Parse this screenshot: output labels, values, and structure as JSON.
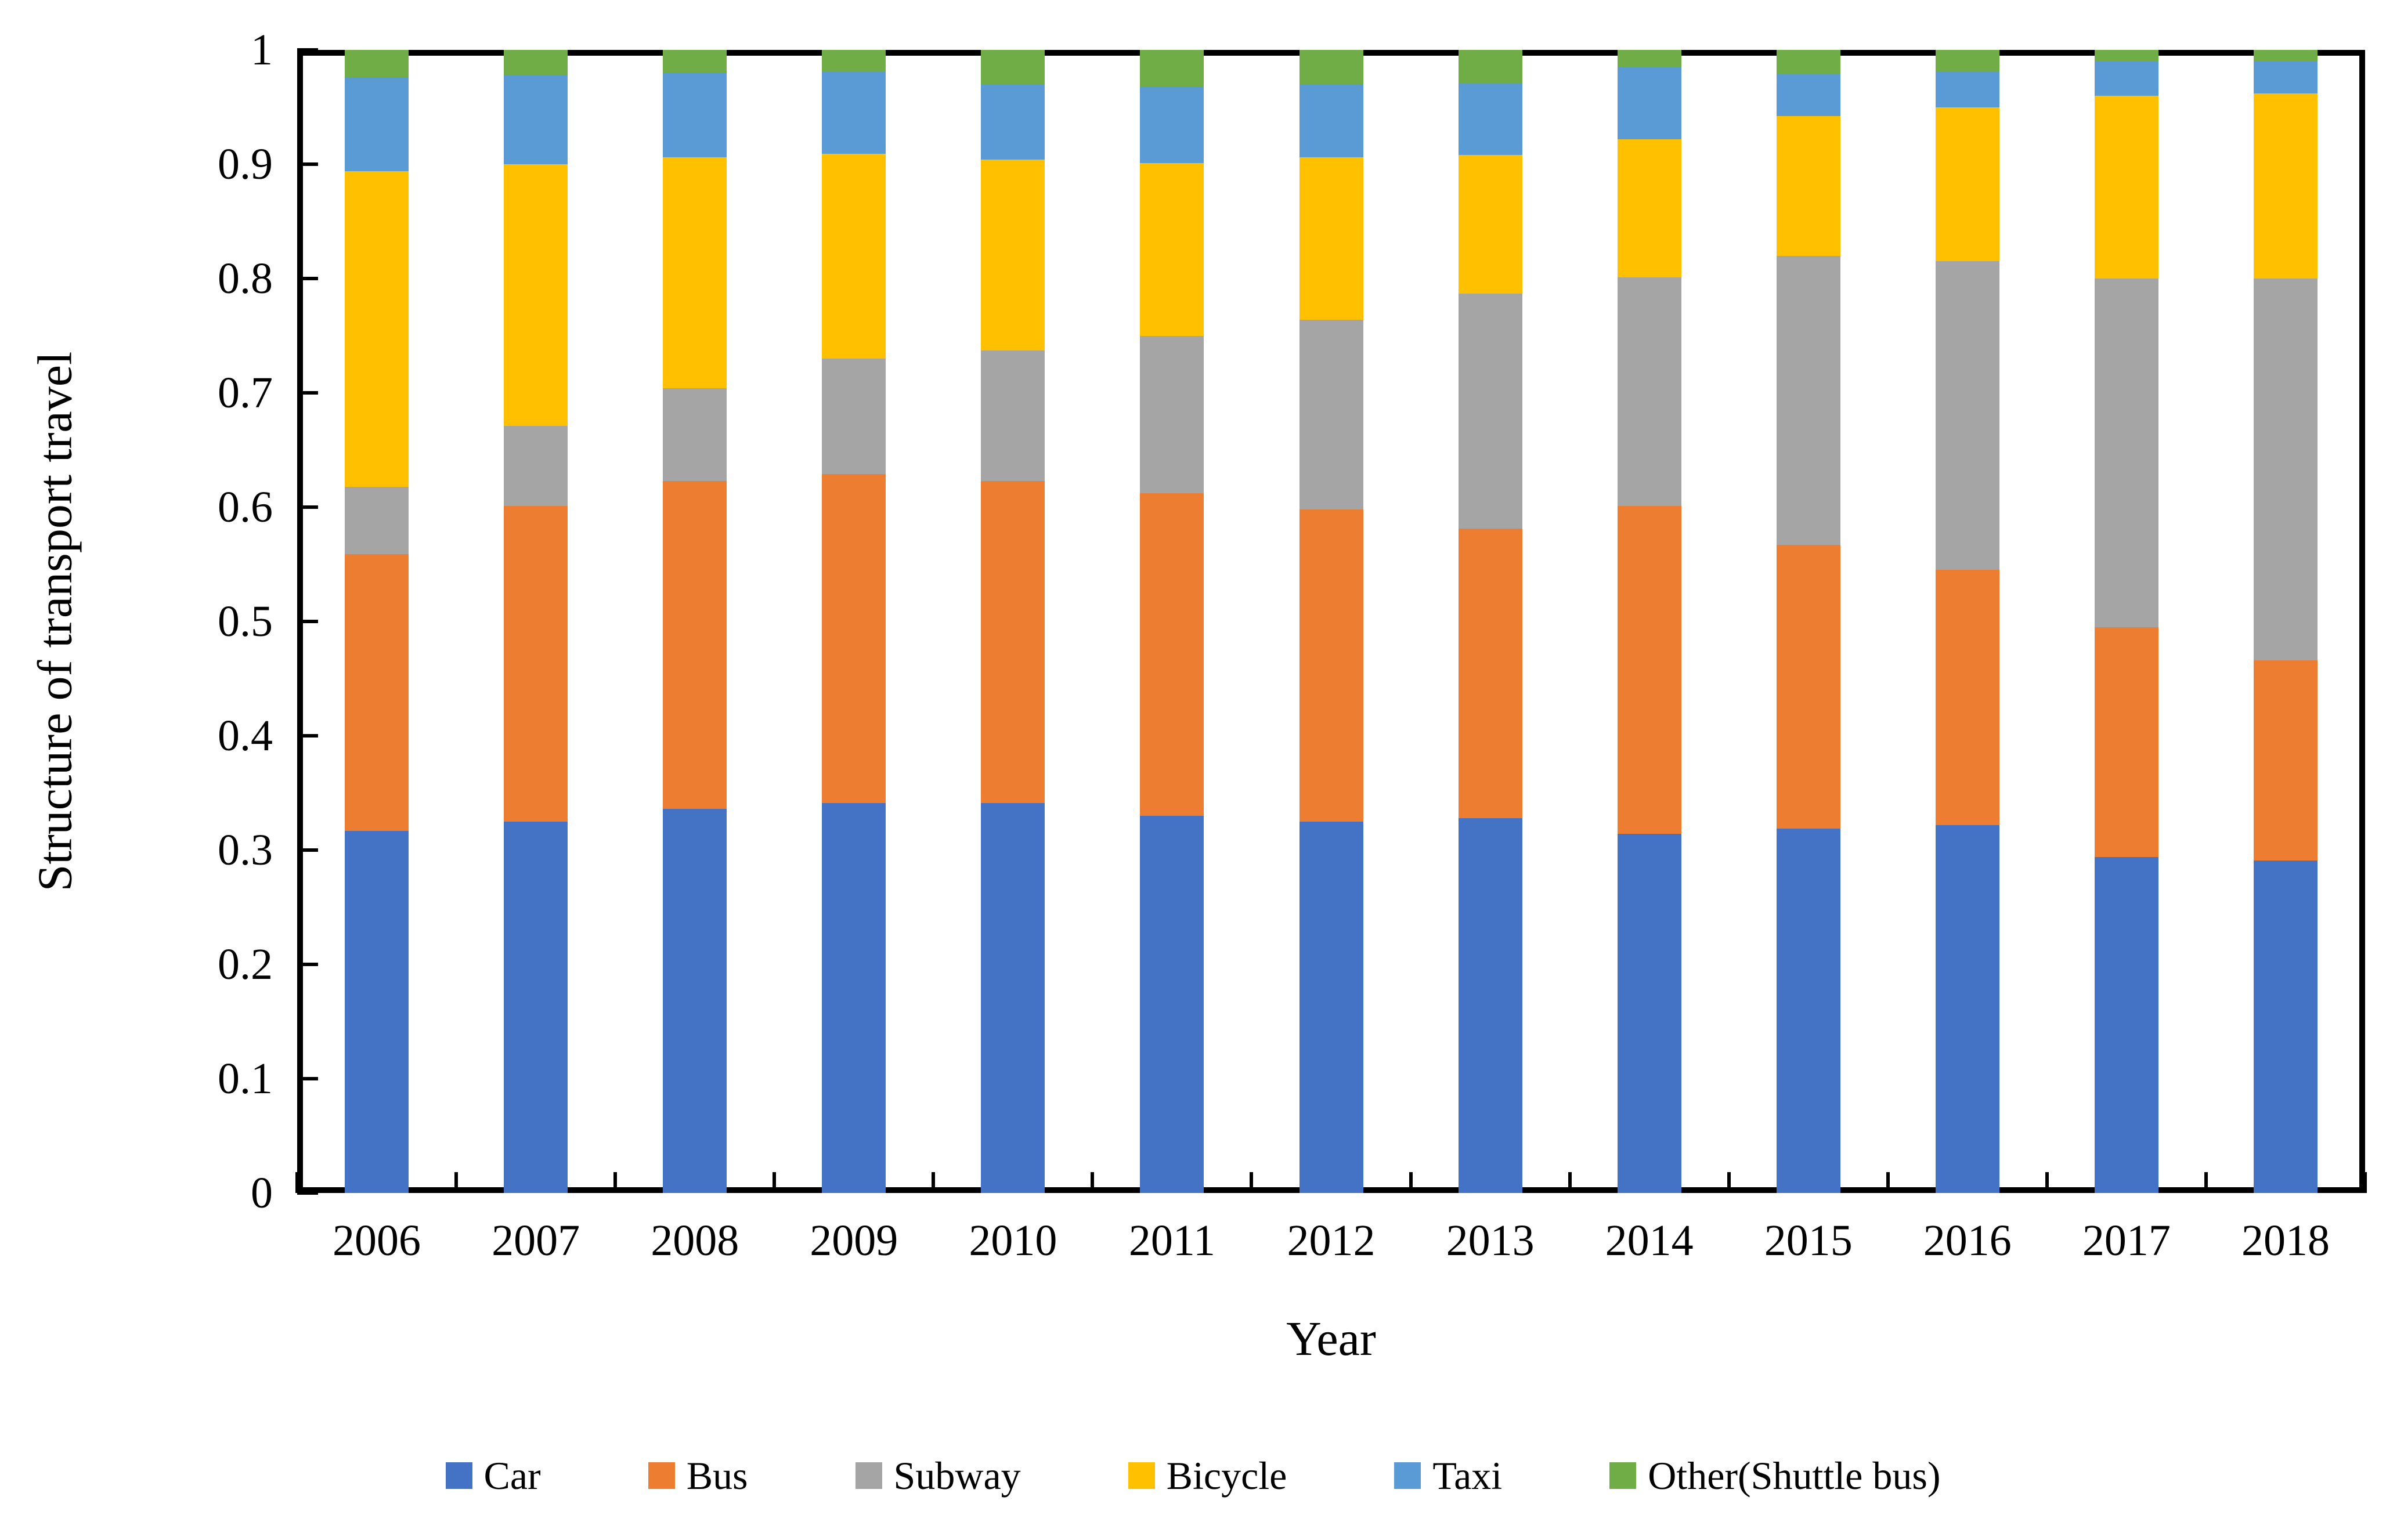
{
  "chart_data": {
    "type": "bar",
    "stacked": true,
    "title": "",
    "xlabel": "Year",
    "ylabel": "Structure of transport travel",
    "ylim": [
      0,
      1
    ],
    "grid": false,
    "legend_position": "bottom",
    "ytick_labels": [
      "0",
      "0.1",
      "0.2",
      "0.3",
      "0.4",
      "0.5",
      "0.6",
      "0.7",
      "0.8",
      "0.9",
      "1"
    ],
    "categories": [
      "2006",
      "2007",
      "2008",
      "2009",
      "2010",
      "2011",
      "2012",
      "2013",
      "2014",
      "2015",
      "2016",
      "2017",
      "2018"
    ],
    "series": [
      {
        "name": "Car",
        "color": "#4472C4",
        "values": [
          0.317,
          0.325,
          0.336,
          0.341,
          0.341,
          0.33,
          0.325,
          0.328,
          0.314,
          0.319,
          0.322,
          0.294,
          0.291
        ]
      },
      {
        "name": "Bus",
        "color": "#ED7D31",
        "values": [
          0.242,
          0.276,
          0.287,
          0.288,
          0.282,
          0.282,
          0.273,
          0.253,
          0.287,
          0.248,
          0.223,
          0.201,
          0.175
        ]
      },
      {
        "name": "Subway",
        "color": "#A5A5A5",
        "values": [
          0.059,
          0.07,
          0.081,
          0.101,
          0.114,
          0.138,
          0.166,
          0.206,
          0.2,
          0.253,
          0.27,
          0.305,
          0.334
        ]
      },
      {
        "name": "Bicycle",
        "color": "#FFC000",
        "values": [
          0.276,
          0.229,
          0.202,
          0.179,
          0.167,
          0.151,
          0.142,
          0.121,
          0.121,
          0.122,
          0.135,
          0.16,
          0.162
        ]
      },
      {
        "name": "Taxi",
        "color": "#5B9BD5",
        "values": [
          0.082,
          0.078,
          0.074,
          0.072,
          0.066,
          0.067,
          0.064,
          0.063,
          0.063,
          0.037,
          0.031,
          0.03,
          0.028
        ]
      },
      {
        "name": "Other(Shuttle bus)",
        "color": "#70AD47",
        "values": [
          0.024,
          0.022,
          0.02,
          0.019,
          0.03,
          0.032,
          0.03,
          0.029,
          0.015,
          0.021,
          0.019,
          0.01,
          0.01
        ]
      }
    ]
  }
}
